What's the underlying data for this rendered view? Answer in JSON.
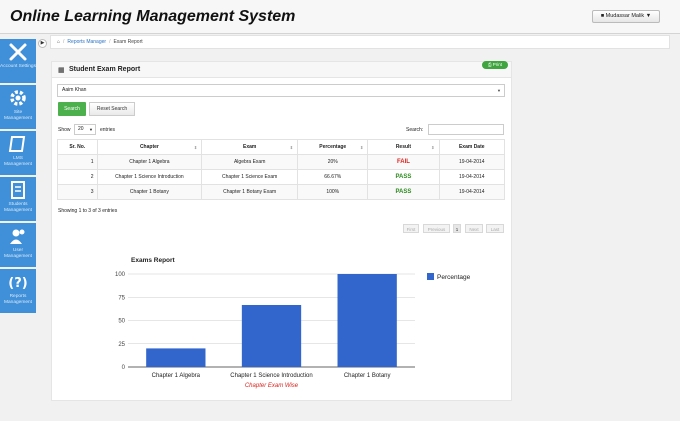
{
  "app": {
    "title": "Online Learning Management System"
  },
  "user": {
    "name": "Mudassar Malik"
  },
  "sidebar": {
    "items": [
      {
        "label": "Account Settings",
        "icon": "tools-icon"
      },
      {
        "label": "Site Management",
        "icon": "gear-icon"
      },
      {
        "label": "LMS Management",
        "icon": "book-icon"
      },
      {
        "label": "Students Management",
        "icon": "document-icon"
      },
      {
        "label": "User Management",
        "icon": "users-icon"
      },
      {
        "label": "Reports Management",
        "icon": "question-icon"
      }
    ]
  },
  "breadcrumb": {
    "home_icon": "home-icon",
    "link": "Reports Manager",
    "current": "Exam Report"
  },
  "panel": {
    "title": "Student Exam Report",
    "print_label": "Print"
  },
  "filter": {
    "student": "Aaim Khan",
    "search_label": "Search",
    "reset_label": "Reset Search"
  },
  "table_controls": {
    "show_label": "Show",
    "entries_value": "20",
    "entries_label": "entries",
    "search_label": "Search:"
  },
  "table": {
    "headers": [
      "Sr. No.",
      "Chapter",
      "Exam",
      "Percentage",
      "Result",
      "Exam Date"
    ],
    "rows": [
      {
        "sr": "1",
        "chapter": "Chapter 1 Algebra",
        "exam": "Algebra Exam",
        "percentage": "20%",
        "result": "FAIL",
        "date": "19-04-2014"
      },
      {
        "sr": "2",
        "chapter": "Chapter 1 Science Introduction",
        "exam": "Chapter 1 Science Exam",
        "percentage": "66.67%",
        "result": "PASS",
        "date": "19-04-2014"
      },
      {
        "sr": "3",
        "chapter": "Chapter 1 Botany",
        "exam": "Chapter 1 Botany Exam",
        "percentage": "100%",
        "result": "PASS",
        "date": "19-04-2014"
      }
    ]
  },
  "pagination": {
    "info": "Showing 1 to 3 of 3 entries",
    "first": "First",
    "previous": "Previous",
    "current": "1",
    "next": "Next",
    "last": "Last"
  },
  "colors": {
    "sidebar": "#3f8fd9",
    "bar": "#3366cc",
    "pass": "#2d8a1f",
    "fail": "#d9231e",
    "search_button": "#4cb04c"
  },
  "chart_data": {
    "type": "bar",
    "title": "Exams Report",
    "categories": [
      "Chapter 1 Algebra",
      "Chapter 1 Science Introduction",
      "Chapter 1 Botany"
    ],
    "series": [
      {
        "name": "Percentage",
        "values": [
          20,
          66.67,
          100
        ]
      }
    ],
    "xlabel": "Chapter Exam Wise",
    "ylabel": "",
    "ylim": [
      0,
      100
    ],
    "yticks": [
      "0",
      "25",
      "50",
      "75",
      "100"
    ],
    "grid": true,
    "legend": "right"
  }
}
